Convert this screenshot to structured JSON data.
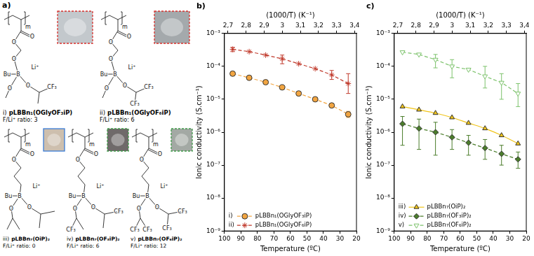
{
  "panel_a": {
    "label": "a)",
    "rows": [
      [
        {
          "numeral": "i)",
          "name": "pLBBn₁(OGlyOF₃iP)",
          "ratio": "F/Li⁺ ratio: 3",
          "atoms": [
            "m",
            "O",
            "O",
            "O",
            "Bu",
            "B",
            "Li⁺",
            "O",
            "O"
          ],
          "substituents": [
            "CF₃"
          ]
        },
        {
          "numeral": "ii)",
          "name": "pLBBn₁(OGlyOF₆iP)",
          "ratio": "F/Li⁺ ratio: 6",
          "atoms": [
            "m",
            "O",
            "O",
            "O",
            "Bu",
            "B",
            "Li⁺",
            "O",
            "O"
          ],
          "substituents": [
            "CF₃",
            "CF₃"
          ]
        }
      ],
      [
        {
          "numeral": "iii)",
          "name": "pLBBn₇(OiP)₂",
          "ratio": "F/Li⁺ ratio: 0",
          "atoms": [
            "m",
            "O",
            "O",
            "Bu",
            "B",
            "Li⁺",
            "O",
            "O"
          ],
          "substituents": []
        },
        {
          "numeral": "iv)",
          "name": "pLBBn₇(OF₃iP)₂",
          "ratio": "F/Li⁺ ratio: 6",
          "atoms": [
            "m",
            "O",
            "O",
            "Bu",
            "B",
            "Li⁺",
            "O",
            "O"
          ],
          "substituents": [
            "CF₃",
            "CF₃"
          ]
        },
        {
          "numeral": "v)",
          "name": "pLBBn₇(OF₆iP)₂",
          "ratio": "F/Li⁺ ratio: 12",
          "atoms": [
            "m",
            "O",
            "O",
            "Bu",
            "B",
            "Li⁺",
            "O",
            "O"
          ],
          "substituents": [
            "CF₃",
            "CF₃",
            "CF₃",
            "CF₃"
          ]
        }
      ]
    ]
  },
  "chart_data": [
    {
      "type": "line",
      "panel_label": "b)",
      "x_label": "Temperature (ºC)",
      "x2_label": "(1000/T) (K⁻¹)",
      "y_label": "Ionic conductivity (S.cm⁻¹)",
      "x": [
        95,
        85,
        75,
        65,
        55,
        45,
        35,
        25
      ],
      "xlim": [
        100,
        20
      ],
      "xticks": [
        100,
        90,
        80,
        70,
        60,
        50,
        40,
        30,
        20
      ],
      "x2lim": [
        2.68,
        3.41
      ],
      "x2ticks": [
        {
          "value": 2.7,
          "label": "2,7"
        },
        {
          "value": 2.8,
          "label": "2,8"
        },
        {
          "value": 2.9,
          "label": "2,9"
        },
        3,
        {
          "value": 3.1,
          "label": "3,1"
        },
        {
          "value": 3.2,
          "label": "3,2"
        },
        {
          "value": 3.3,
          "label": "3,3"
        },
        {
          "value": 3.4,
          "label": "3,4"
        }
      ],
      "ylim": [
        1e-09,
        0.001
      ],
      "yticks": [
        {
          "value": 1e-09,
          "label": "10⁻⁹"
        },
        {
          "value": 1e-08,
          "label": "10⁻⁸"
        },
        {
          "value": 1e-07,
          "label": "10⁻⁷"
        },
        {
          "value": 1e-06,
          "label": "10⁻⁶"
        },
        {
          "value": 1e-05,
          "label": "10⁻⁵"
        },
        {
          "value": 0.0001,
          "label": "10⁻⁴"
        },
        {
          "value": 0.001,
          "label": "10⁻³"
        }
      ],
      "log": "y",
      "grid": false,
      "legend": "lower left",
      "series": [
        {
          "numeral": "i)",
          "name": "pLBBn₁(OGlyOF₃iP)",
          "color": "#f2a541",
          "marker": "circle",
          "line_style": "dashed",
          "values": [
            6e-05,
            4.5e-05,
            3.3e-05,
            2.3e-05,
            1.5e-05,
            1e-05,
            6.5e-06,
            3.5e-06
          ],
          "y_low": [
            null,
            null,
            null,
            null,
            null,
            null,
            null,
            2.8e-06
          ],
          "y_high": [
            null,
            null,
            null,
            null,
            null,
            null,
            null,
            4.3e-06
          ]
        },
        {
          "numeral": "ii)",
          "name": "pLBBn₁(OGlyOF₆iP)",
          "color": "#c0392b",
          "marker": "star",
          "line_style": "dashed",
          "values": [
            0.00033,
            0.00028,
            0.00022,
            0.00017,
            0.00012,
            8.5e-05,
            5.5e-05,
            3e-05
          ],
          "y_low": [
            0.00028,
            null,
            null,
            0.00012,
            null,
            null,
            4e-05,
            1.5e-05
          ],
          "y_high": [
            0.00038,
            null,
            null,
            0.00022,
            null,
            null,
            7.5e-05,
            6e-05
          ]
        }
      ]
    },
    {
      "type": "line",
      "panel_label": "c)",
      "x_label": "Temperature (ºC)",
      "x2_label": "(1000/T) (K⁻¹)",
      "y_label": "Ionic conductivity (S.cm⁻¹)",
      "x": [
        95,
        85,
        75,
        65,
        55,
        45,
        35,
        25
      ],
      "xlim": [
        100,
        20
      ],
      "xticks": [
        100,
        90,
        80,
        70,
        60,
        50,
        40,
        30,
        20
      ],
      "x2lim": [
        2.68,
        3.41
      ],
      "x2ticks": [
        {
          "value": 2.7,
          "label": "2,7"
        },
        {
          "value": 2.8,
          "label": "2,8"
        },
        {
          "value": 2.9,
          "label": "2,9"
        },
        3,
        {
          "value": 3.1,
          "label": "3,1"
        },
        {
          "value": 3.2,
          "label": "3,2"
        },
        {
          "value": 3.3,
          "label": "3,3"
        },
        {
          "value": 3.4,
          "label": "3,4"
        }
      ],
      "ylim": [
        1e-09,
        0.001
      ],
      "yticks": [
        {
          "value": 1e-09,
          "label": "10⁻⁹"
        },
        {
          "value": 1e-08,
          "label": "10⁻⁸"
        },
        {
          "value": 1e-07,
          "label": "10⁻⁷"
        },
        {
          "value": 1e-06,
          "label": "10⁻⁶"
        },
        {
          "value": 1e-05,
          "label": "10⁻⁵"
        },
        {
          "value": 0.0001,
          "label": "10⁻⁴"
        },
        {
          "value": 0.001,
          "label": "10⁻³"
        }
      ],
      "log": "y",
      "grid": false,
      "legend": "lower left",
      "series": [
        {
          "numeral": "iii)",
          "name": "pLBBn₇(OiP)₂",
          "color": "#f0c419",
          "marker": "triangle",
          "line_style": "solid",
          "values": [
            6e-06,
            4.8e-06,
            3.8e-06,
            2.8e-06,
            1.9e-06,
            1.3e-06,
            8e-07,
            4.5e-07
          ]
        },
        {
          "numeral": "iv)",
          "name": "pLBBn₇(OF₃iP)₂",
          "color": "#4b7d2b",
          "marker": "diamond",
          "line_style": "dashed",
          "values": [
            1.8e-06,
            1.3e-06,
            1e-06,
            7e-07,
            4.8e-07,
            3.3e-07,
            2.2e-07,
            1.5e-07
          ],
          "y_low": [
            4e-07,
            3e-07,
            2e-07,
            3e-07,
            2e-07,
            1.5e-07,
            1e-07,
            8e-08
          ],
          "y_high": [
            3e-06,
            2.5e-06,
            2e-06,
            1.2e-06,
            8e-07,
            6e-07,
            4e-07,
            2.5e-07
          ]
        },
        {
          "numeral": "v)",
          "name": "pLBBn₇(OF₆iP)₂",
          "color": "#7cc26b",
          "marker": "open_triangle_down",
          "line_style": "dashed",
          "values": [
            0.00027,
            0.00023,
            0.00016,
            0.0001,
            8e-05,
            5e-05,
            3.2e-05,
            1.5e-05
          ],
          "y_low": [
            null,
            null,
            9e-05,
            4.5e-05,
            null,
            2.2e-05,
            1e-05,
            6e-06
          ],
          "y_high": [
            null,
            null,
            0.00023,
            0.00016,
            null,
            0.0001,
            6e-05,
            3e-05
          ]
        }
      ]
    }
  ]
}
